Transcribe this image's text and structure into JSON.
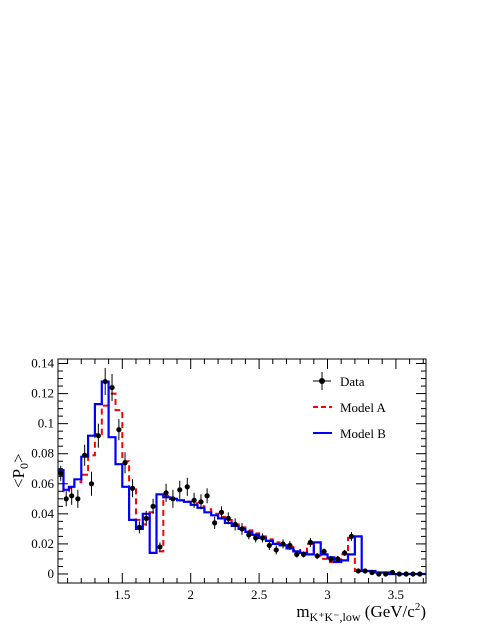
{
  "chart_data": {
    "type": "line",
    "title": "",
    "xlabel": {
      "prefix": "m",
      "subscript": "K⁺K⁻,low",
      "units_prefix": " (GeV/c",
      "units_sup": "2",
      "units_suffix": ")"
    },
    "ylabel": {
      "open": "<P",
      "sub": "0",
      "close": ">"
    },
    "xlim": [
      1.03,
      3.72
    ],
    "ylim": [
      -0.006,
      0.143
    ],
    "x_ticks": [
      1.5,
      2,
      2.5,
      3,
      3.5
    ],
    "x_tick_labels": [
      "1.5",
      "2",
      "2.5",
      "3",
      "3.5"
    ],
    "y_ticks": [
      0,
      0.02,
      0.04,
      0.06,
      0.08,
      0.1,
      0.12,
      0.14
    ],
    "y_tick_labels": [
      "0",
      "0.02",
      "0.04",
      "0.06",
      "0.08",
      "0.1",
      "0.12",
      "0.14"
    ],
    "grid": false,
    "legend": {
      "position": "top-right",
      "entries": [
        "Data",
        "Model A",
        "Model B"
      ]
    },
    "bin_edges": [
      1.03,
      1.07,
      1.11,
      1.15,
      1.2,
      1.25,
      1.3,
      1.35,
      1.4,
      1.45,
      1.5,
      1.55,
      1.6,
      1.65,
      1.7,
      1.75,
      1.8,
      1.85,
      1.9,
      1.95,
      2.0,
      2.05,
      2.1,
      2.15,
      2.2,
      2.25,
      2.3,
      2.35,
      2.4,
      2.45,
      2.5,
      2.55,
      2.6,
      2.65,
      2.7,
      2.75,
      2.8,
      2.85,
      2.9,
      2.95,
      3.0,
      3.05,
      3.1,
      3.15,
      3.2,
      3.25,
      3.3,
      3.35,
      3.4,
      3.45,
      3.5,
      3.55,
      3.6,
      3.65,
      3.72
    ],
    "series": [
      {
        "name": "Data",
        "kind": "points",
        "color": "#000000",
        "x": [
          1.05,
          1.09,
          1.13,
          1.175,
          1.225,
          1.275,
          1.325,
          1.375,
          1.425,
          1.475,
          1.52,
          1.575,
          1.625,
          1.675,
          1.725,
          1.775,
          1.82,
          1.87,
          1.92,
          1.975,
          2.025,
          2.075,
          2.12,
          2.175,
          2.225,
          2.275,
          2.325,
          2.375,
          2.425,
          2.475,
          2.525,
          2.575,
          2.625,
          2.675,
          2.725,
          2.775,
          2.825,
          2.875,
          2.925,
          2.975,
          3.025,
          3.075,
          3.125,
          3.175,
          3.225,
          3.275,
          3.325,
          3.375,
          3.425,
          3.475,
          3.525,
          3.575,
          3.625,
          3.675
        ],
        "y": [
          0.067,
          0.05,
          0.052,
          0.05,
          0.079,
          0.06,
          0.092,
          0.128,
          0.124,
          0.096,
          0.074,
          0.057,
          0.031,
          0.037,
          0.045,
          0.018,
          0.054,
          0.05,
          0.056,
          0.058,
          0.049,
          0.048,
          0.052,
          0.034,
          0.041,
          0.037,
          0.033,
          0.03,
          0.026,
          0.024,
          0.024,
          0.019,
          0.016,
          0.02,
          0.019,
          0.013,
          0.013,
          0.021,
          0.012,
          0.015,
          0.01,
          0.01,
          0.014,
          0.025,
          0.002,
          0.002,
          0.001,
          0.0,
          0.0,
          0.001,
          0.0,
          0.0,
          0.0,
          0.0
        ],
        "err": [
          0.005,
          0.005,
          0.006,
          0.006,
          0.007,
          0.008,
          0.008,
          0.009,
          0.009,
          0.007,
          0.007,
          0.006,
          0.004,
          0.005,
          0.005,
          0.003,
          0.006,
          0.006,
          0.006,
          0.006,
          0.005,
          0.005,
          0.005,
          0.004,
          0.004,
          0.004,
          0.004,
          0.004,
          0.003,
          0.003,
          0.003,
          0.003,
          0.003,
          0.003,
          0.003,
          0.002,
          0.002,
          0.003,
          0.002,
          0.002,
          0.002,
          0.002,
          0.002,
          0.003,
          0.001,
          0.001,
          0.001,
          0.001,
          0.001,
          0.001,
          0.001,
          0.001,
          0.001,
          0.001
        ]
      },
      {
        "name": "Model A",
        "kind": "step",
        "style": "dashed",
        "color": "#ff0000",
        "values": [
          0.068,
          0.055,
          0.057,
          0.061,
          0.066,
          0.079,
          0.093,
          0.112,
          0.12,
          0.109,
          0.075,
          0.057,
          0.036,
          0.033,
          0.041,
          0.015,
          0.052,
          0.05,
          0.049,
          0.048,
          0.047,
          0.045,
          0.043,
          0.04,
          0.038,
          0.036,
          0.033,
          0.031,
          0.029,
          0.027,
          0.025,
          0.023,
          0.021,
          0.019,
          0.018,
          0.016,
          0.014,
          0.02,
          0.012,
          0.01,
          0.008,
          0.009,
          0.013,
          0.024,
          0.002,
          0.002,
          0.001,
          0.001,
          0.001,
          0.0,
          0.0,
          0.0,
          0.0,
          0.0
        ]
      },
      {
        "name": "Model B",
        "kind": "step",
        "style": "solid",
        "color": "#0000ff",
        "values": [
          0.069,
          0.056,
          0.058,
          0.063,
          0.078,
          0.092,
          0.113,
          0.128,
          0.091,
          0.073,
          0.058,
          0.036,
          0.03,
          0.04,
          0.014,
          0.053,
          0.051,
          0.05,
          0.049,
          0.048,
          0.046,
          0.044,
          0.041,
          0.039,
          0.037,
          0.034,
          0.032,
          0.03,
          0.028,
          0.026,
          0.024,
          0.022,
          0.02,
          0.019,
          0.017,
          0.015,
          0.014,
          0.013,
          0.021,
          0.013,
          0.011,
          0.008,
          0.009,
          0.013,
          0.025,
          0.002,
          0.002,
          0.001,
          0.001,
          0.0,
          0.0,
          0.0,
          0.0,
          0.0
        ]
      }
    ]
  }
}
